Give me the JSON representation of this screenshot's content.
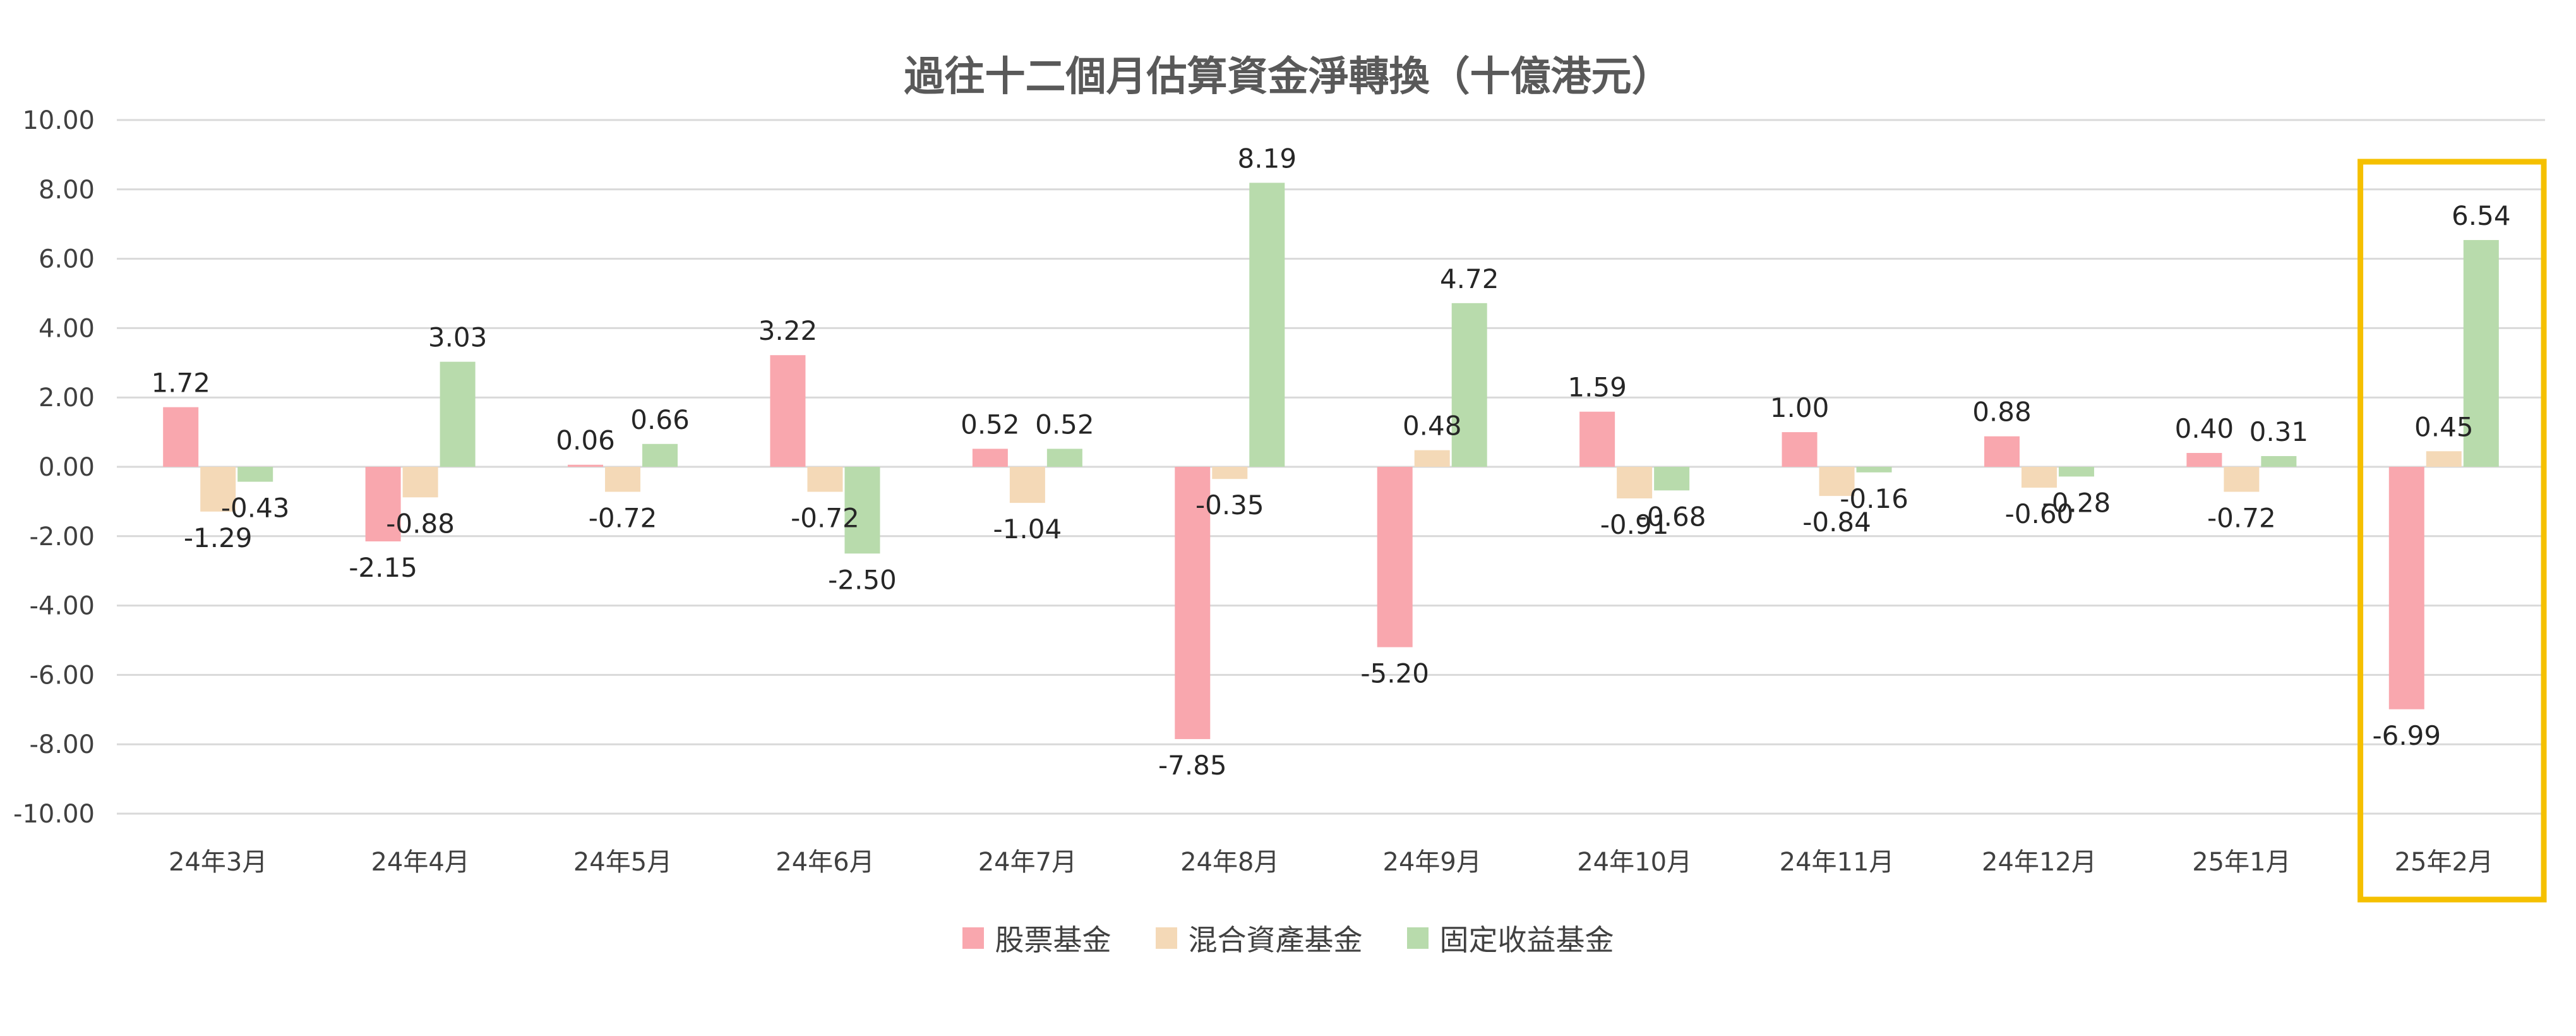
{
  "chart_data": {
    "type": "bar",
    "title": "過往十二個月估算資金淨轉換（十億港元）",
    "xlabel": "",
    "ylabel": "",
    "ylim": [
      -10,
      10
    ],
    "yticks": [
      "10.00",
      "8.00",
      "6.00",
      "4.00",
      "2.00",
      "0.00",
      "-2.00",
      "-4.00",
      "-6.00",
      "-8.00",
      "-10.00"
    ],
    "grid": true,
    "legend_position": "bottom",
    "highlighted_category": "25年2月",
    "highlight_color": "#F5C000",
    "categories": [
      "24年3月",
      "24年4月",
      "24年5月",
      "24年6月",
      "24年7月",
      "24年8月",
      "24年9月",
      "24年10月",
      "24年11月",
      "24年12月",
      "25年1月",
      "25年2月"
    ],
    "series": [
      {
        "name": "股票基金",
        "color": "#F9A7AE",
        "values": [
          1.72,
          -2.15,
          0.06,
          3.22,
          0.52,
          -7.85,
          -5.2,
          1.59,
          1.0,
          0.88,
          0.4,
          -6.99
        ]
      },
      {
        "name": "混合資產基金",
        "color": "#F4D9B7",
        "values": [
          -1.29,
          -0.88,
          -0.72,
          -0.72,
          -1.04,
          -0.35,
          0.48,
          -0.91,
          -0.84,
          -0.6,
          -0.72,
          0.45
        ]
      },
      {
        "name": "固定收益基金",
        "color": "#B8DBAC",
        "values": [
          -0.43,
          3.03,
          0.66,
          -2.5,
          0.52,
          8.19,
          4.72,
          -0.68,
          -0.16,
          -0.28,
          0.31,
          6.54
        ]
      }
    ]
  }
}
